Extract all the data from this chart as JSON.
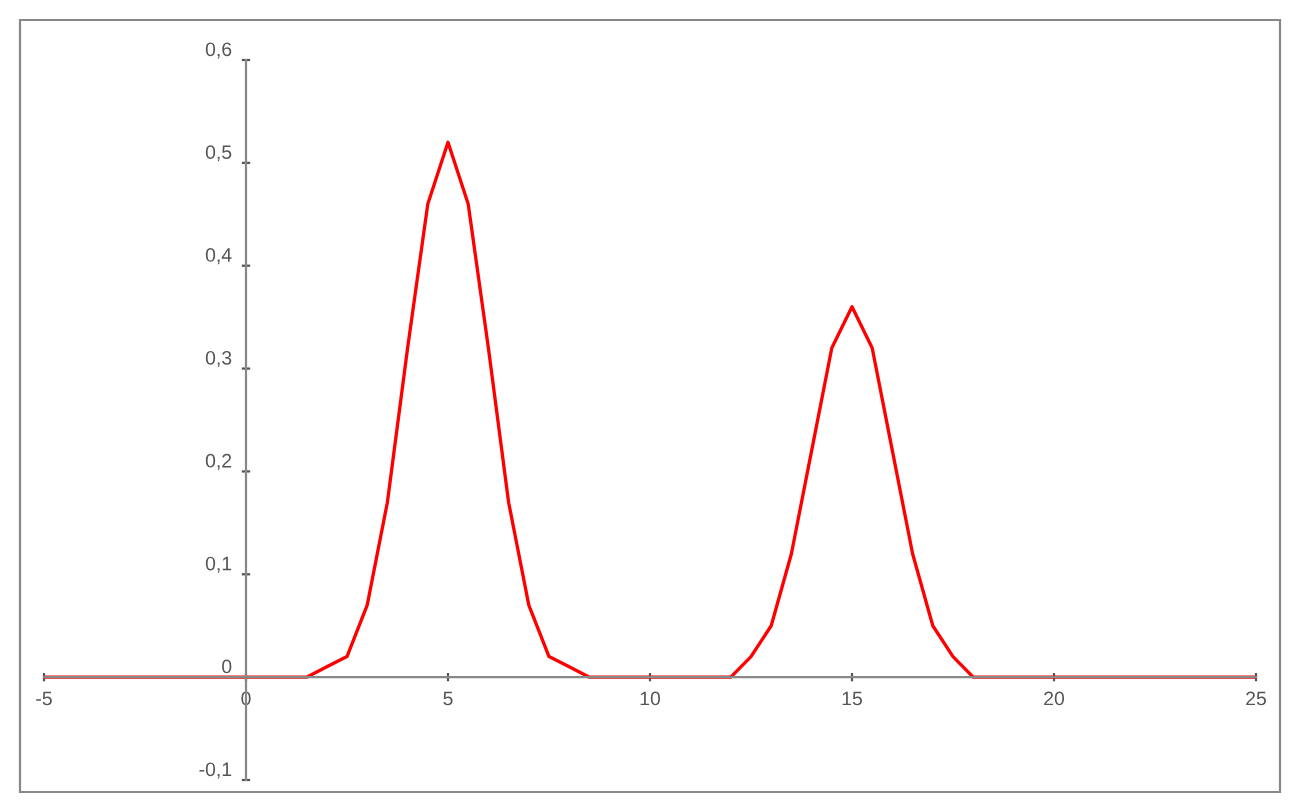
{
  "chart_data": {
    "type": "line",
    "x": [
      -5,
      0,
      1.5,
      2,
      2.5,
      3,
      3.5,
      4,
      4.5,
      5,
      5.5,
      6,
      6.5,
      7,
      7.5,
      8,
      8.5,
      9,
      11,
      11.5,
      12,
      12.5,
      13,
      13.5,
      14,
      14.5,
      15,
      15.5,
      16,
      16.5,
      17,
      17.5,
      18,
      18.5,
      25
    ],
    "series": [
      {
        "color": "#ff0000",
        "values": [
          0,
          0,
          0,
          0.01,
          0.02,
          0.07,
          0.17,
          0.32,
          0.46,
          0.52,
          0.46,
          0.32,
          0.17,
          0.07,
          0.02,
          0.01,
          0,
          0,
          0,
          0,
          0,
          0.02,
          0.05,
          0.12,
          0.22,
          0.32,
          0.36,
          0.32,
          0.22,
          0.12,
          0.05,
          0.02,
          0,
          0,
          0
        ]
      }
    ],
    "xlim": [
      -5,
      25
    ],
    "xticks": [
      -5,
      0,
      5,
      10,
      15,
      20,
      25
    ],
    "ylim": [
      -0.1,
      0.6
    ],
    "yticks": [
      {
        "value": -0.1,
        "label": "-0,1"
      },
      {
        "value": 0,
        "label": "0"
      },
      {
        "value": 0.1,
        "label": "0,1"
      },
      {
        "value": 0.2,
        "label": "0,2"
      },
      {
        "value": 0.3,
        "label": "0,3"
      },
      {
        "value": 0.4,
        "label": "0,4"
      },
      {
        "value": 0.5,
        "label": "0,5"
      },
      {
        "value": 0.6,
        "label": "0,6"
      }
    ],
    "grid": false,
    "legend": false,
    "marker": "none",
    "line_style": "solid"
  }
}
